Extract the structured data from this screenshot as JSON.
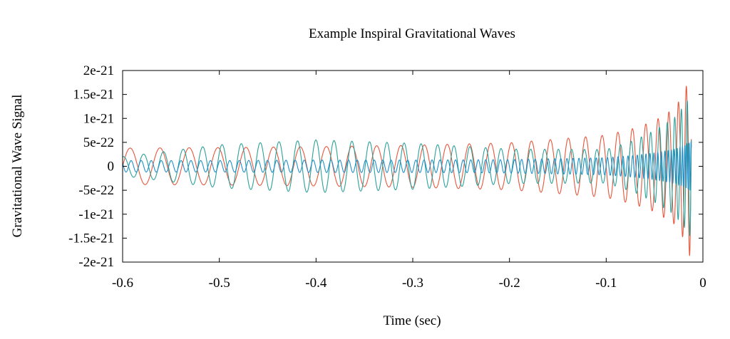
{
  "chart_data": {
    "type": "line",
    "title": "Example Inspiral Gravitational Waves",
    "xlabel": "Time (sec)",
    "ylabel": "Gravitational Wave Signal",
    "xlim": [
      -0.6,
      0
    ],
    "ylim": [
      -2e-21,
      2e-21
    ],
    "x_ticks": [
      {
        "value": -0.6,
        "label": "-0.6"
      },
      {
        "value": -0.5,
        "label": "-0.5"
      },
      {
        "value": -0.4,
        "label": "-0.4"
      },
      {
        "value": -0.3,
        "label": "-0.3"
      },
      {
        "value": -0.2,
        "label": "-0.2"
      },
      {
        "value": -0.1,
        "label": "-0.1"
      },
      {
        "value": 0,
        "label": "0"
      }
    ],
    "y_ticks": [
      {
        "value": 2e-21,
        "label": "2e-21"
      },
      {
        "value": 1.5e-21,
        "label": "1.5e-21"
      },
      {
        "value": 1e-21,
        "label": "1e-21"
      },
      {
        "value": 5e-22,
        "label": "5e-22"
      },
      {
        "value": 0,
        "label": "0"
      },
      {
        "value": -5e-22,
        "label": "-5e-22"
      },
      {
        "value": -1e-21,
        "label": "-1e-21"
      },
      {
        "value": -1.5e-21,
        "label": "-1.5e-21"
      },
      {
        "value": -2e-21,
        "label": "-2e-21"
      }
    ],
    "grid": false,
    "legend": "none",
    "series": [
      {
        "color": "#e8553a",
        "x": [
          -0.6,
          -0.5,
          -0.4,
          -0.3,
          -0.2,
          -0.1,
          -0.07,
          -0.05,
          -0.03,
          -0.02,
          -0.015,
          -0.012
        ],
        "amplitude": [
          3.8e-22,
          3.9e-22,
          4.1e-22,
          4.4e-22,
          4.9e-22,
          6.5e-22,
          8e-22,
          9.5e-22,
          1.2e-21,
          1.5e-21,
          1.8e-21,
          1.95e-21
        ],
        "frequency_hz": [
          32,
          34,
          37,
          41,
          47,
          60,
          70,
          80,
          100,
          125,
          150,
          170
        ]
      },
      {
        "color": "#2aa198",
        "x": [
          -0.6,
          -0.5,
          -0.4,
          -0.3,
          -0.2,
          -0.1,
          -0.07,
          -0.05,
          -0.03,
          -0.02,
          -0.015,
          -0.012
        ],
        "amplitude": [
          2e-22,
          4.5e-22,
          5.5e-22,
          4.8e-22,
          3.6e-22,
          3.5e-22,
          5.5e-22,
          7.5e-22,
          1e-21,
          1.25e-21,
          1.4e-21,
          1.5e-21
        ],
        "frequency_hz": [
          48,
          50,
          53,
          57,
          64,
          80,
          95,
          110,
          135,
          160,
          185,
          205
        ]
      },
      {
        "color": "#1f8fc7",
        "x": [
          -0.6,
          -0.5,
          -0.4,
          -0.3,
          -0.2,
          -0.1,
          -0.07,
          -0.05,
          -0.03,
          -0.02,
          -0.015,
          -0.012
        ],
        "amplitude": [
          1.2e-22,
          1.2e-22,
          1.3e-22,
          1.3e-22,
          1.4e-22,
          1.8e-22,
          2.3e-22,
          2.8e-22,
          3.5e-22,
          4.2e-22,
          4.8e-22,
          5.2e-22
        ],
        "frequency_hz": [
          95,
          100,
          108,
          118,
          135,
          175,
          210,
          250,
          320,
          400,
          470,
          520
        ]
      }
    ]
  }
}
